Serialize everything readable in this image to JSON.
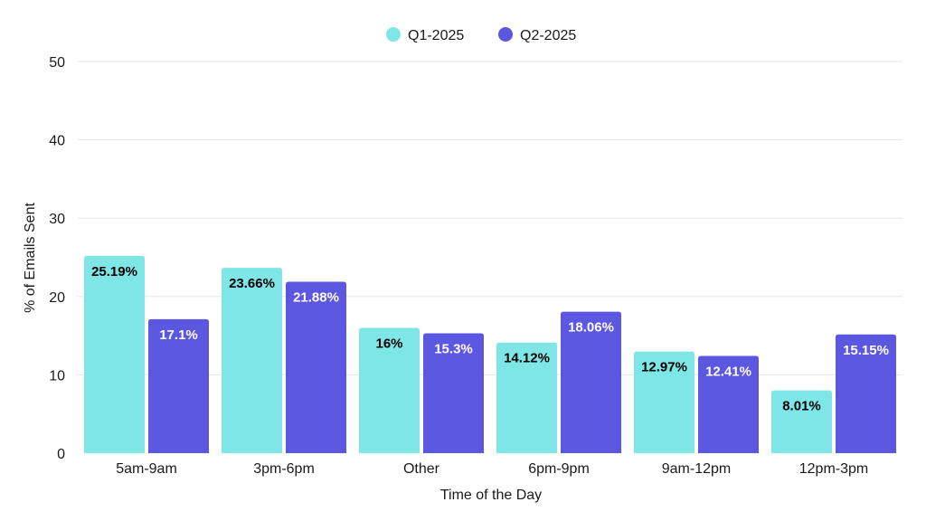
{
  "chart_data": {
    "type": "bar",
    "title": "",
    "xlabel": "Time of the Day",
    "ylabel": "% of Emails Sent",
    "ylim": [
      0,
      50
    ],
    "yticks": [
      0,
      10,
      20,
      30,
      40,
      50
    ],
    "grid": true,
    "legend_position": "top-center",
    "categories": [
      "5am-9am",
      "3pm-6pm",
      "Other",
      "6pm-9pm",
      "9am-12pm",
      "12pm-3pm"
    ],
    "series": [
      {
        "name": "Q1-2025",
        "color": "#7ee6e6",
        "label_color": "#000000",
        "values": [
          25.19,
          23.66,
          16,
          14.12,
          12.97,
          8.01
        ],
        "labels": [
          "25.19%",
          "23.66%",
          "16%",
          "14.12%",
          "12.97%",
          "8.01%"
        ]
      },
      {
        "name": "Q2-2025",
        "color": "#5b57e0",
        "label_color": "#ffffff",
        "values": [
          17.1,
          21.88,
          15.3,
          18.06,
          12.41,
          15.15
        ],
        "labels": [
          "17.1%",
          "21.88%",
          "15.3%",
          "18.06%",
          "12.41%",
          "15.15%"
        ]
      }
    ]
  }
}
